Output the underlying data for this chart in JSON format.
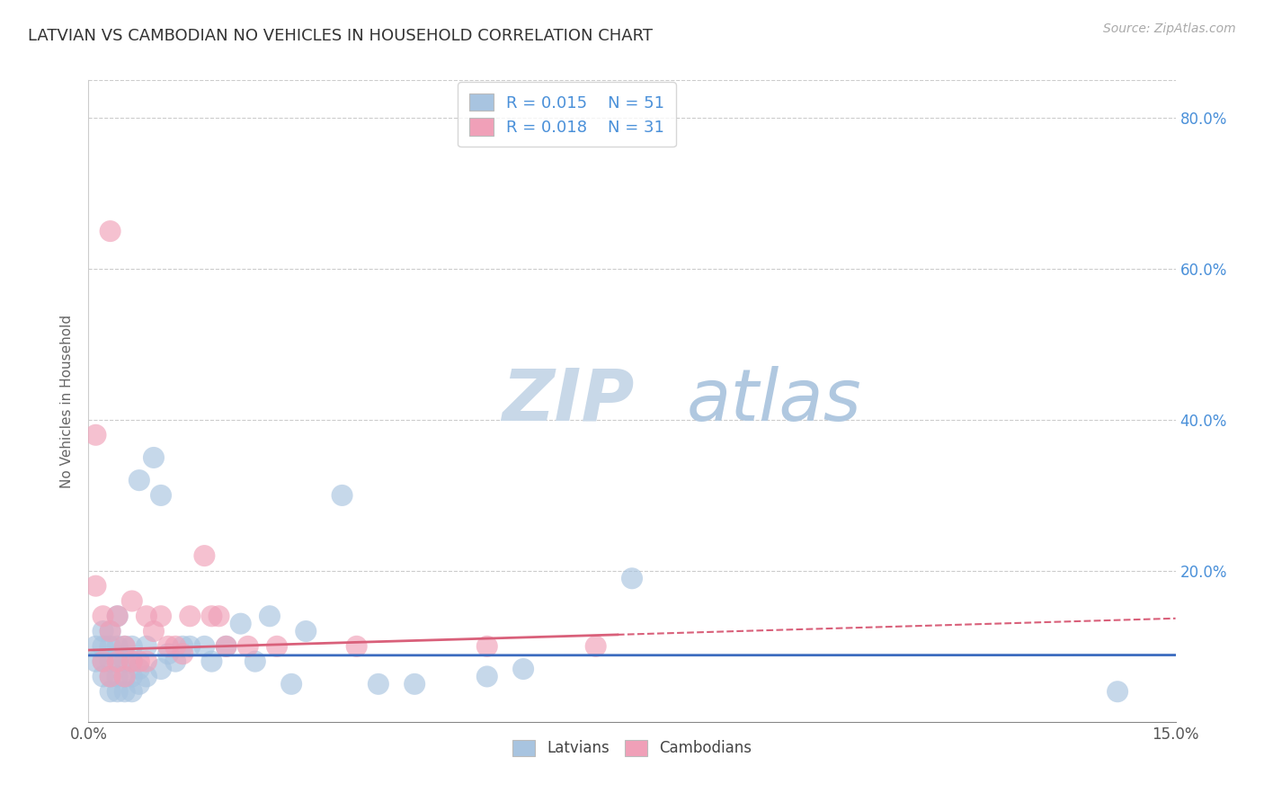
{
  "title": "LATVIAN VS CAMBODIAN NO VEHICLES IN HOUSEHOLD CORRELATION CHART",
  "source": "Source: ZipAtlas.com",
  "ylabel": "No Vehicles in Household",
  "xlim": [
    0.0,
    0.15
  ],
  "ylim": [
    0.0,
    0.85
  ],
  "ytick_vals": [
    0.2,
    0.4,
    0.6,
    0.8
  ],
  "grid_color": "#cccccc",
  "latvian_color": "#a8c4e0",
  "cambodian_color": "#f0a0b8",
  "latvian_line_color": "#3b6bbf",
  "cambodian_line_color": "#d9607a",
  "legend_latvian_label": "R = 0.015    N = 51",
  "legend_cambodian_label": "R = 0.018    N = 31",
  "latvian_x": [
    0.001,
    0.001,
    0.002,
    0.002,
    0.002,
    0.002,
    0.003,
    0.003,
    0.003,
    0.003,
    0.003,
    0.004,
    0.004,
    0.004,
    0.004,
    0.004,
    0.005,
    0.005,
    0.005,
    0.005,
    0.006,
    0.006,
    0.006,
    0.006,
    0.007,
    0.007,
    0.007,
    0.008,
    0.008,
    0.009,
    0.01,
    0.01,
    0.011,
    0.012,
    0.013,
    0.014,
    0.016,
    0.017,
    0.019,
    0.021,
    0.023,
    0.025,
    0.028,
    0.03,
    0.035,
    0.04,
    0.045,
    0.055,
    0.06,
    0.075,
    0.142
  ],
  "latvian_y": [
    0.08,
    0.1,
    0.06,
    0.08,
    0.1,
    0.12,
    0.04,
    0.06,
    0.08,
    0.1,
    0.12,
    0.04,
    0.06,
    0.08,
    0.1,
    0.14,
    0.04,
    0.06,
    0.08,
    0.1,
    0.04,
    0.06,
    0.08,
    0.1,
    0.05,
    0.07,
    0.32,
    0.06,
    0.1,
    0.35,
    0.07,
    0.3,
    0.09,
    0.08,
    0.1,
    0.1,
    0.1,
    0.08,
    0.1,
    0.13,
    0.08,
    0.14,
    0.05,
    0.12,
    0.3,
    0.05,
    0.05,
    0.06,
    0.07,
    0.19,
    0.04
  ],
  "cambodian_x": [
    0.001,
    0.001,
    0.002,
    0.002,
    0.003,
    0.003,
    0.003,
    0.004,
    0.004,
    0.005,
    0.005,
    0.006,
    0.006,
    0.007,
    0.008,
    0.008,
    0.009,
    0.01,
    0.011,
    0.012,
    0.013,
    0.014,
    0.016,
    0.017,
    0.018,
    0.019,
    0.022,
    0.026,
    0.037,
    0.055,
    0.07
  ],
  "cambodian_y": [
    0.18,
    0.38,
    0.08,
    0.14,
    0.06,
    0.12,
    0.65,
    0.08,
    0.14,
    0.06,
    0.1,
    0.08,
    0.16,
    0.08,
    0.08,
    0.14,
    0.12,
    0.14,
    0.1,
    0.1,
    0.09,
    0.14,
    0.22,
    0.14,
    0.14,
    0.1,
    0.1,
    0.1,
    0.1,
    0.1,
    0.1
  ],
  "latvian_line_intercept": 0.088,
  "latvian_line_slope": 0.003,
  "cambodian_line_intercept": 0.095,
  "cambodian_line_slope": 0.28
}
